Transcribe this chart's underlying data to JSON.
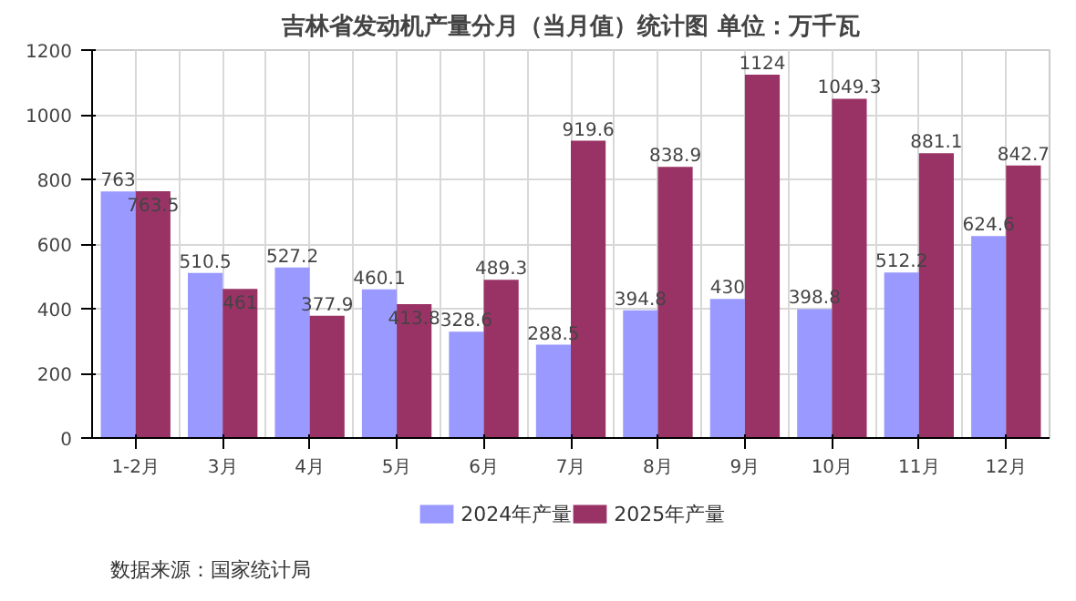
{
  "chart_data": {
    "type": "bar",
    "title": "吉林省发动机产量分月（当月值）统计图 单位：万千瓦",
    "categories": [
      "1-2月",
      "3月",
      "4月",
      "5月",
      "6月",
      "7月",
      "8月",
      "9月",
      "10月",
      "11月",
      "12月"
    ],
    "series": [
      {
        "name": "2024年产量",
        "color": "#9999ff",
        "values": [
          763,
          510.5,
          527.2,
          460.1,
          328.6,
          288.5,
          394.8,
          430,
          398.8,
          512.2,
          624.6
        ]
      },
      {
        "name": "2025年产量",
        "color": "#993366",
        "values": [
          763.5,
          461,
          377.9,
          413.8,
          489.3,
          919.6,
          838.9,
          1124,
          1049.3,
          881.1,
          842.7
        ]
      }
    ],
    "ylim": [
      0,
      1200
    ],
    "yticks": [
      0,
      200,
      400,
      600,
      800,
      1000,
      1200
    ],
    "grid": true,
    "legend": "bottom",
    "data_labels": true,
    "annotations": [
      "数据来源：国家统计局"
    ]
  }
}
